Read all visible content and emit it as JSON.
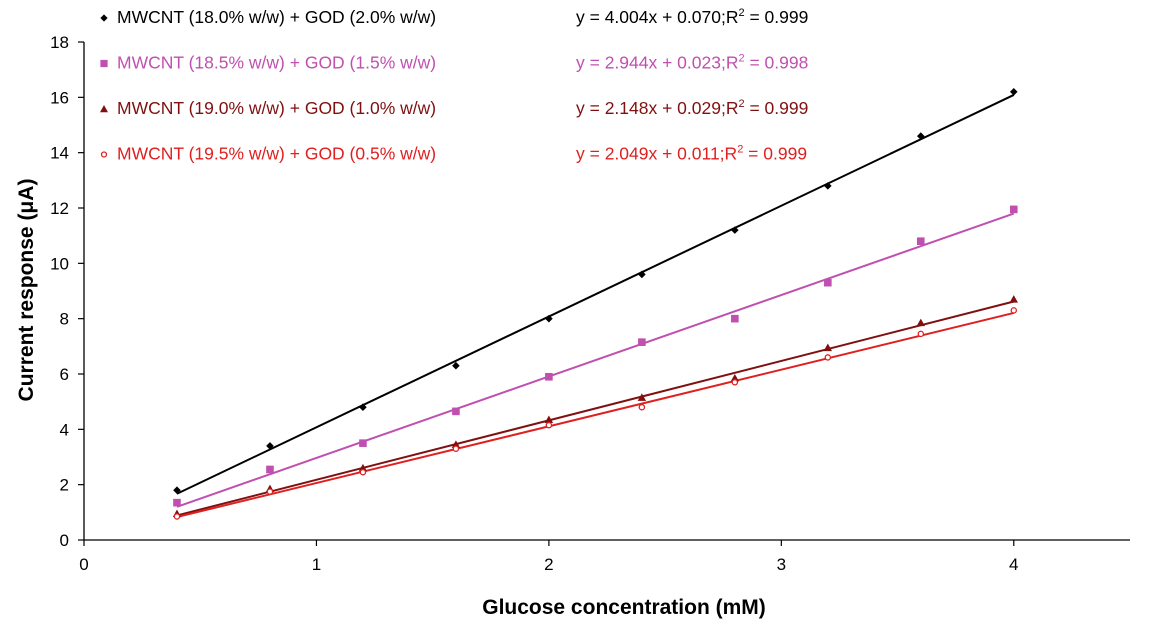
{
  "chart_data": {
    "type": "scatter",
    "xlabel": "Glucose concentration (mM)",
    "ylabel": "Current response (μA)",
    "xlim": [
      0,
      4.5
    ],
    "ylim": [
      0,
      18
    ],
    "x_ticks": [
      0,
      1,
      2,
      3,
      4
    ],
    "y_ticks": [
      0,
      2,
      4,
      6,
      8,
      10,
      12,
      14,
      16,
      18
    ],
    "grid": false,
    "legend_position": "top-left",
    "x": [
      0.4,
      0.8,
      1.2,
      1.6,
      2.0,
      2.4,
      2.8,
      3.2,
      3.6,
      4.0
    ],
    "series": [
      {
        "name": "MWCNT (18.0%  w/w) + GOD (2.0% w/w)",
        "color": "#000000",
        "marker": "diamond",
        "values": [
          1.8,
          3.4,
          4.8,
          6.3,
          8.0,
          9.6,
          11.2,
          12.8,
          14.6,
          16.2
        ],
        "fit": {
          "slope": 4.004,
          "intercept": 0.07
        },
        "equation": "y = 4.004x + 0.070;R",
        "r2": " = 0.999"
      },
      {
        "name": "MWCNT (18.5%  w/w) + GOD (1.5% w/w)",
        "color": "#c050b0",
        "marker": "square",
        "values": [
          1.35,
          2.55,
          3.5,
          4.65,
          5.9,
          7.15,
          8.0,
          9.3,
          10.8,
          11.95
        ],
        "fit": {
          "slope": 2.944,
          "intercept": 0.023
        },
        "equation": "y = 2.944x + 0.023;R",
        "r2": " = 0.998"
      },
      {
        "name": "MWCNT (19.0%  w/w) + GOD (1.0% w/w)",
        "color": "#801010",
        "marker": "triangle",
        "values": [
          0.95,
          1.85,
          2.6,
          3.45,
          4.35,
          5.15,
          5.85,
          6.95,
          7.85,
          8.7
        ],
        "fit": {
          "slope": 2.148,
          "intercept": 0.029
        },
        "equation": "y = 2.148x + 0.029;R",
        "r2": " = 0.999"
      },
      {
        "name": "MWCNT (19.5%  w/w) + GOD (0.5% w/w)",
        "color": "#e02020",
        "marker": "circle",
        "values": [
          0.85,
          1.75,
          2.45,
          3.3,
          4.15,
          4.8,
          5.7,
          6.6,
          7.45,
          8.3
        ],
        "fit": {
          "slope": 2.049,
          "intercept": 0.011
        },
        "equation": "y = 2.049x + 0.011;R",
        "r2": " = 0.999"
      }
    ]
  }
}
